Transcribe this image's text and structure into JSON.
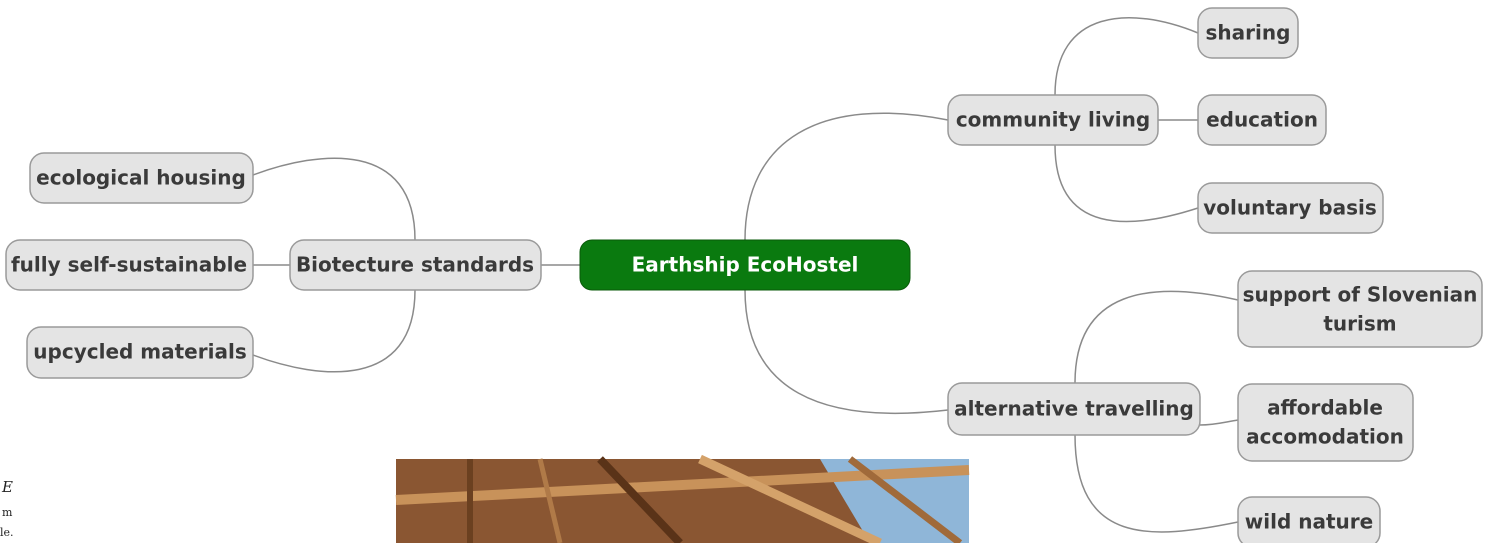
{
  "root": "Earthship EcoHostel",
  "branches": [
    {
      "label": "Biotecture standards",
      "children": [
        [
          "ecological housing"
        ],
        [
          "fully self-sustainable"
        ],
        [
          "upcycled materials"
        ]
      ]
    },
    {
      "label": "community living",
      "children": [
        [
          "sharing"
        ],
        [
          "education"
        ],
        [
          "voluntary basis"
        ]
      ]
    },
    {
      "label": "alternative travelling",
      "children": [
        [
          "support of Slovenian",
          "turism"
        ],
        [
          "affordable",
          "accomodation"
        ],
        [
          "wild nature"
        ]
      ]
    }
  ],
  "fragments": [
    "E",
    "m",
    "le."
  ]
}
